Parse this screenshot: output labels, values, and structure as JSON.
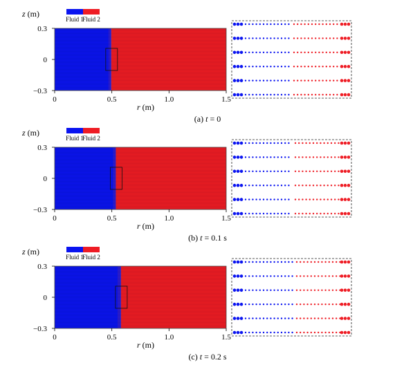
{
  "figure": {
    "panels": [
      {
        "id": "a",
        "caption": "(a) t = 0",
        "caption_parts": {
          "prefix": "(a) ",
          "var": "t",
          "rest": " = 0"
        },
        "interface_r": [
          0.47,
          0.52
        ]
      },
      {
        "id": "b",
        "caption": "(b) t = 0.1 s",
        "caption_parts": {
          "prefix": "(b) ",
          "var": "t",
          "rest": " = 0.1 s"
        },
        "interface_r": [
          0.51,
          0.56
        ]
      },
      {
        "id": "c",
        "caption": "(c) t = 0.2 s",
        "caption_parts": {
          "prefix": "(c) ",
          "var": "t",
          "rest": " = 0.2 s"
        },
        "interface_r": [
          0.55,
          0.61
        ]
      }
    ],
    "legend": [
      {
        "label": "Fluid 1",
        "color": "#0a14f0"
      },
      {
        "label": "Fluid 2",
        "color": "#ee1c24"
      }
    ],
    "ylabel": {
      "var": "z",
      "unit": " (m)"
    },
    "xlabel": {
      "var": "r",
      "unit": " (m)"
    },
    "x_ticks": [
      "0",
      "0.5",
      "1.0",
      "1.5"
    ],
    "y_ticks": [
      "0.3",
      "0",
      "−0.3"
    ],
    "domain": {
      "r": [
        0,
        1.5
      ],
      "z": [
        -0.3,
        0.3
      ]
    },
    "colors": {
      "fluid1": "#0a14f0",
      "fluid2": "#ee1c24",
      "frame": "#444444"
    }
  }
}
